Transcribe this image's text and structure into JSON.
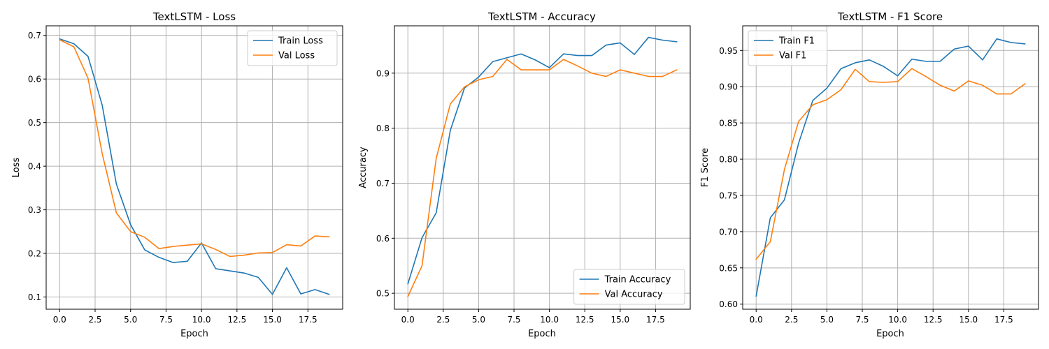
{
  "colors": {
    "train": "#1f77b4",
    "val": "#ff7f0e",
    "grid": "#b0b0b0",
    "axis": "#000000"
  },
  "chart_data": [
    {
      "type": "line",
      "title": "TextLSTM - Loss",
      "xlabel": "Epoch",
      "ylabel": "Loss",
      "xlim": [
        -0.95,
        19.95
      ],
      "ylim": [
        0.072,
        0.722
      ],
      "xticks": [
        0.0,
        2.5,
        5.0,
        7.5,
        10.0,
        12.5,
        15.0,
        17.5
      ],
      "xtick_labels": [
        "0.0",
        "2.5",
        "5.0",
        "7.5",
        "10.0",
        "12.5",
        "15.0",
        "17.5"
      ],
      "yticks": [
        0.1,
        0.2,
        0.3,
        0.4,
        0.5,
        0.6,
        0.7
      ],
      "ytick_labels": [
        "0.1",
        "0.2",
        "0.3",
        "0.4",
        "0.5",
        "0.6",
        "0.7"
      ],
      "grid": true,
      "legend": "top-right",
      "x": [
        0,
        1,
        2,
        3,
        4,
        5,
        6,
        7,
        8,
        9,
        10,
        11,
        12,
        13,
        14,
        15,
        16,
        17,
        18,
        19
      ],
      "series": [
        {
          "name": "Train Loss",
          "color": "#1f77b4",
          "values": [
            0.692,
            0.681,
            0.652,
            0.54,
            0.359,
            0.266,
            0.208,
            0.191,
            0.179,
            0.182,
            0.224,
            0.165,
            0.16,
            0.155,
            0.145,
            0.106,
            0.167,
            0.107,
            0.117,
            0.106
          ]
        },
        {
          "name": "Val Loss",
          "color": "#ff7f0e",
          "values": [
            0.69,
            0.674,
            0.602,
            0.429,
            0.293,
            0.25,
            0.237,
            0.211,
            0.216,
            0.219,
            0.222,
            0.209,
            0.193,
            0.196,
            0.201,
            0.202,
            0.22,
            0.217,
            0.24,
            0.238
          ]
        }
      ]
    },
    {
      "type": "line",
      "title": "TextLSTM - Accuracy",
      "xlabel": "Epoch",
      "ylabel": "Accuracy",
      "xlim": [
        -0.95,
        19.95
      ],
      "ylim": [
        0.471,
        0.986
      ],
      "xticks": [
        0.0,
        2.5,
        5.0,
        7.5,
        10.0,
        12.5,
        15.0,
        17.5
      ],
      "xtick_labels": [
        "0.0",
        "2.5",
        "5.0",
        "7.5",
        "10.0",
        "12.5",
        "15.0",
        "17.5"
      ],
      "yticks": [
        0.5,
        0.6,
        0.7,
        0.8,
        0.9
      ],
      "ytick_labels": [
        "0.5",
        "0.6",
        "0.7",
        "0.8",
        "0.9"
      ],
      "grid": true,
      "legend": "bottom-right",
      "x": [
        0,
        1,
        2,
        3,
        4,
        5,
        6,
        7,
        8,
        9,
        10,
        11,
        12,
        13,
        14,
        15,
        16,
        17,
        18,
        19
      ],
      "series": [
        {
          "name": "Train Accuracy",
          "color": "#1f77b4",
          "values": [
            0.517,
            0.601,
            0.646,
            0.796,
            0.873,
            0.893,
            0.921,
            0.928,
            0.935,
            0.924,
            0.91,
            0.935,
            0.932,
            0.932,
            0.951,
            0.955,
            0.934,
            0.965,
            0.96,
            0.957
          ]
        },
        {
          "name": "Val Accuracy",
          "color": "#ff7f0e",
          "values": [
            0.494,
            0.55,
            0.745,
            0.844,
            0.875,
            0.888,
            0.894,
            0.925,
            0.906,
            0.906,
            0.906,
            0.925,
            0.913,
            0.9,
            0.894,
            0.906,
            0.9,
            0.894,
            0.894,
            0.906
          ]
        }
      ]
    },
    {
      "type": "line",
      "title": "TextLSTM - F1 Score",
      "xlabel": "Epoch",
      "ylabel": "F1 Score",
      "xlim": [
        -0.95,
        19.95
      ],
      "ylim": [
        0.593,
        0.984
      ],
      "xticks": [
        0.0,
        2.5,
        5.0,
        7.5,
        10.0,
        12.5,
        15.0,
        17.5
      ],
      "xtick_labels": [
        "0.0",
        "2.5",
        "5.0",
        "7.5",
        "10.0",
        "12.5",
        "15.0",
        "17.5"
      ],
      "yticks": [
        0.6,
        0.65,
        0.7,
        0.75,
        0.8,
        0.85,
        0.9,
        0.95
      ],
      "ytick_labels": [
        "0.60",
        "0.65",
        "0.70",
        "0.75",
        "0.80",
        "0.85",
        "0.90",
        "0.95"
      ],
      "grid": true,
      "legend": "top-left",
      "x": [
        0,
        1,
        2,
        3,
        4,
        5,
        6,
        7,
        8,
        9,
        10,
        11,
        12,
        13,
        14,
        15,
        16,
        17,
        18,
        19
      ],
      "series": [
        {
          "name": "Train F1",
          "color": "#1f77b4",
          "values": [
            0.611,
            0.719,
            0.744,
            0.822,
            0.881,
            0.898,
            0.925,
            0.933,
            0.937,
            0.928,
            0.915,
            0.938,
            0.935,
            0.935,
            0.952,
            0.956,
            0.937,
            0.966,
            0.961,
            0.959
          ]
        },
        {
          "name": "Val F1",
          "color": "#ff7f0e",
          "values": [
            0.662,
            0.686,
            0.786,
            0.852,
            0.875,
            0.882,
            0.896,
            0.924,
            0.907,
            0.906,
            0.907,
            0.925,
            0.914,
            0.902,
            0.894,
            0.908,
            0.902,
            0.89,
            0.89,
            0.904
          ]
        }
      ]
    }
  ]
}
